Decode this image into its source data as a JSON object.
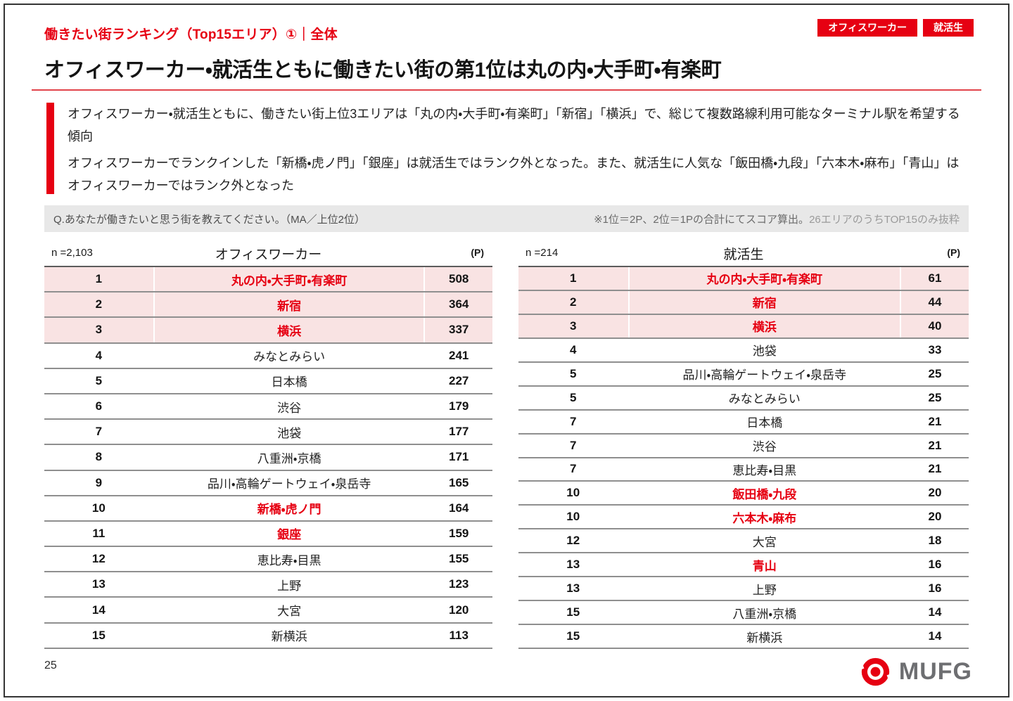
{
  "page": {
    "slide_label": "働きたい街ランキング（Top15エリア）①｜全体",
    "title": "オフィスワーカー・就活生ともに働きたい街の第1位は丸の内・大手町・有楽町",
    "page_number": "25"
  },
  "badges": {
    "office_worker": "オフィスワーカー",
    "job_hunter": "就活生"
  },
  "summary": {
    "line1": "オフィスワーカー・就活生ともに、働きたい街上位3エリアは「丸の内・大手町・有楽町」「新宿」「横浜」で、総じて複数路線利用可能なターミナル駅を希望する傾向",
    "line2": "オフィスワーカーでランクインした「新橋・虎ノ門」「銀座」は就活生ではランク外となった。また、就活生に人気な「飯田橋・九段」「六本木・麻布」「青山」はオフィスワーカーではランク外となった"
  },
  "question_bar": {
    "question": "Q.あなたが働きたいと思う街を教えてください。（MA／上位2位）",
    "note_dark": "※1位＝2P、2位＝1Pの合計にてスコア算出。",
    "note_light": "26エリアのうちTOP15のみ抜粋"
  },
  "logo": {
    "wordmark": "MUFG"
  },
  "colors": {
    "accent_red": "#e60012",
    "highlight_pink": "#f9e3e3",
    "question_bar_gray": "#e8e8e8",
    "logo_gray": "#6d6e71"
  },
  "tables": [
    {
      "n_label": "n =2,103",
      "title": "オフィスワーカー",
      "unit": "(P)",
      "rows": [
        {
          "rank": "1",
          "area": "丸の内・大手町・有楽町",
          "points": "508",
          "highlight": true,
          "red": true
        },
        {
          "rank": "2",
          "area": "新宿",
          "points": "364",
          "highlight": true,
          "red": true
        },
        {
          "rank": "3",
          "area": "横浜",
          "points": "337",
          "highlight": true,
          "red": true
        },
        {
          "rank": "4",
          "area": "みなとみらい",
          "points": "241",
          "highlight": false,
          "red": false
        },
        {
          "rank": "5",
          "area": "日本橋",
          "points": "227",
          "highlight": false,
          "red": false
        },
        {
          "rank": "6",
          "area": "渋谷",
          "points": "179",
          "highlight": false,
          "red": false
        },
        {
          "rank": "7",
          "area": "池袋",
          "points": "177",
          "highlight": false,
          "red": false
        },
        {
          "rank": "8",
          "area": "八重洲・京橋",
          "points": "171",
          "highlight": false,
          "red": false
        },
        {
          "rank": "9",
          "area": "品川・高輪ゲートウェイ・泉岳寺",
          "points": "165",
          "highlight": false,
          "red": false
        },
        {
          "rank": "10",
          "area": "新橋・虎ノ門",
          "points": "164",
          "highlight": false,
          "red": true
        },
        {
          "rank": "11",
          "area": "銀座",
          "points": "159",
          "highlight": false,
          "red": true
        },
        {
          "rank": "12",
          "area": "恵比寿・目黒",
          "points": "155",
          "highlight": false,
          "red": false
        },
        {
          "rank": "13",
          "area": "上野",
          "points": "123",
          "highlight": false,
          "red": false
        },
        {
          "rank": "14",
          "area": "大宮",
          "points": "120",
          "highlight": false,
          "red": false
        },
        {
          "rank": "15",
          "area": "新横浜",
          "points": "113",
          "highlight": false,
          "red": false
        }
      ]
    },
    {
      "n_label": "n =214",
      "title": "就活生",
      "unit": "(P)",
      "rows": [
        {
          "rank": "1",
          "area": "丸の内・大手町・有楽町",
          "points": "61",
          "highlight": true,
          "red": true
        },
        {
          "rank": "2",
          "area": "新宿",
          "points": "44",
          "highlight": true,
          "red": true
        },
        {
          "rank": "3",
          "area": "横浜",
          "points": "40",
          "highlight": true,
          "red": true
        },
        {
          "rank": "4",
          "area": "池袋",
          "points": "33",
          "highlight": false,
          "red": false
        },
        {
          "rank": "5",
          "area": "品川・高輪ゲートウェイ・泉岳寺",
          "points": "25",
          "highlight": false,
          "red": false
        },
        {
          "rank": "5",
          "area": "みなとみらい",
          "points": "25",
          "highlight": false,
          "red": false
        },
        {
          "rank": "7",
          "area": "日本橋",
          "points": "21",
          "highlight": false,
          "red": false
        },
        {
          "rank": "7",
          "area": "渋谷",
          "points": "21",
          "highlight": false,
          "red": false
        },
        {
          "rank": "7",
          "area": "恵比寿・目黒",
          "points": "21",
          "highlight": false,
          "red": false
        },
        {
          "rank": "10",
          "area": "飯田橋・九段",
          "points": "20",
          "highlight": false,
          "red": true
        },
        {
          "rank": "10",
          "area": "六本木・麻布",
          "points": "20",
          "highlight": false,
          "red": true
        },
        {
          "rank": "12",
          "area": "大宮",
          "points": "18",
          "highlight": false,
          "red": false
        },
        {
          "rank": "13",
          "area": "青山",
          "points": "16",
          "highlight": false,
          "red": true
        },
        {
          "rank": "13",
          "area": "上野",
          "points": "16",
          "highlight": false,
          "red": false
        },
        {
          "rank": "15",
          "area": "八重洲・京橋",
          "points": "14",
          "highlight": false,
          "red": false
        },
        {
          "rank": "15",
          "area": "新横浜",
          "points": "14",
          "highlight": false,
          "red": false
        }
      ]
    }
  ]
}
